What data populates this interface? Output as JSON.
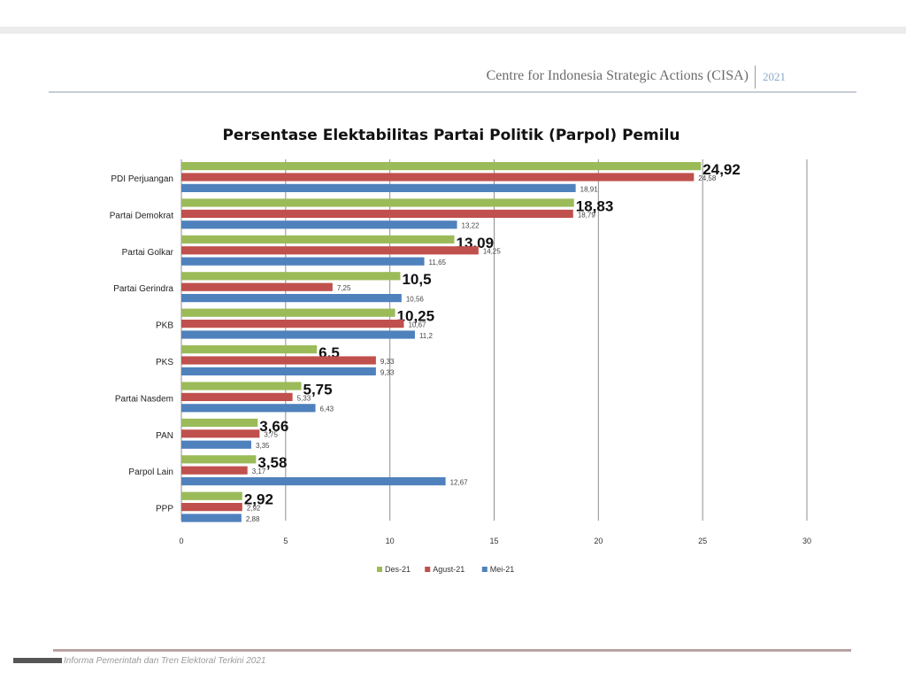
{
  "header": {
    "org": "Centre for Indonesia Strategic Actions (CISA)",
    "year": "2021"
  },
  "footer": {
    "text": "Informa Pemerintah dan Tren Elektoral Terkini 2021"
  },
  "colors": {
    "des": "#9bbb59",
    "agu": "#c0504d",
    "mei": "#4f81bd",
    "grid": "#8f8f8f"
  },
  "chart_data": {
    "type": "bar",
    "orientation": "horizontal",
    "title": "Persentase Elektabilitas Partai Politik (Parpol) Pemilu",
    "categories": [
      "PDI Perjuangan",
      "Partai Demokrat",
      "Partai Golkar",
      "Partai Gerindra",
      "PKB",
      "PKS",
      "Partai Nasdem",
      "PAN",
      "Parpol Lain",
      "PPP"
    ],
    "series": [
      {
        "name": "Des-21",
        "values": [
          24.92,
          18.83,
          13.09,
          10.5,
          10.25,
          6.5,
          5.75,
          3.66,
          3.58,
          2.92
        ],
        "labels": [
          "24,92",
          "18,83",
          "13,09",
          "10,5",
          "10,25",
          "6,5",
          "5,75",
          "3,66",
          "3,58",
          "2,92"
        ]
      },
      {
        "name": "Agust-21",
        "values": [
          24.58,
          18.79,
          14.25,
          7.25,
          10.67,
          9.33,
          5.33,
          3.75,
          3.17,
          2.92
        ],
        "labels": [
          "24,58",
          "18,79",
          "14,25",
          "7,25",
          "10,67",
          "9,33",
          "5,33",
          "3,75",
          "3,17",
          "2,92"
        ]
      },
      {
        "name": "Mei-21",
        "values": [
          18.91,
          13.22,
          11.65,
          10.56,
          11.2,
          9.33,
          6.43,
          3.35,
          12.67,
          2.88
        ],
        "labels": [
          "18,91",
          "13,22",
          "11,65",
          "10,56",
          "11,2",
          "9,33",
          "6,43",
          "3,35",
          "12,67",
          "2,88"
        ]
      }
    ],
    "xticks": [
      0,
      5,
      10,
      15,
      20,
      25,
      30
    ],
    "xlim": [
      0,
      30
    ],
    "grid": true,
    "legend": "bottom"
  }
}
